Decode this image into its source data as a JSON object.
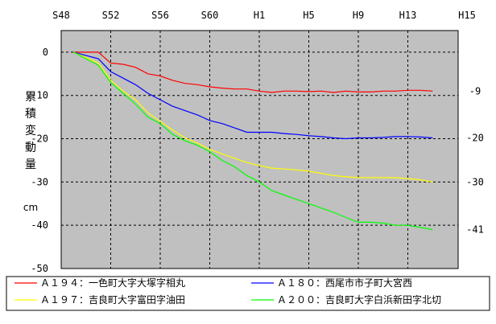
{
  "chart_data": {
    "type": "line",
    "x_categories": [
      "S48",
      "S52",
      "S56",
      "S60",
      "H1",
      "H5",
      "H9",
      "H13",
      "H15"
    ],
    "ylabel_chars": [
      "累",
      "積",
      "変",
      "動",
      "量"
    ],
    "unit": "cm",
    "ylim": [
      -50,
      5
    ],
    "y_ticks": [
      "0",
      "-10",
      "-20",
      "-30",
      "-40",
      "-50"
    ],
    "grid": true,
    "background": "#c0c0c0",
    "series": [
      {
        "name": "Ａ１９４：一色町大字大塚字相丸",
        "color": "#ff0000",
        "end_label": "-9",
        "x": [
          1974,
          1976,
          1977,
          1978,
          1979,
          1980,
          1981,
          1982,
          1983,
          1984,
          1985,
          1986,
          1987,
          1988,
          1989,
          1990,
          1991,
          1992,
          1993,
          1994,
          1995,
          1996,
          1997,
          1998,
          1999,
          2000,
          2001,
          2002,
          2003
        ],
        "y": [
          0,
          0,
          -2.5,
          -2.8,
          -3.5,
          -5,
          -5.5,
          -6.5,
          -7.2,
          -7.5,
          -8,
          -8.3,
          -8.5,
          -8.5,
          -9,
          -9.3,
          -9,
          -9,
          -9.1,
          -9,
          -9.3,
          -9,
          -9.2,
          -9.2,
          -9,
          -9,
          -8.8,
          -8.8,
          -9
        ]
      },
      {
        "name": "Ａ１８０：西尾市市子町大宮西",
        "color": "#0000ff",
        "end_label": "-20",
        "x": [
          1974,
          1976,
          1977,
          1978,
          1979,
          1980,
          1981,
          1982,
          1983,
          1984,
          1985,
          1986,
          1987,
          1988,
          1989,
          1990,
          1991,
          1992,
          1993,
          1994,
          1995,
          1996,
          1997,
          1998,
          1999,
          2000,
          2001,
          2002,
          2003
        ],
        "y": [
          0,
          -1.5,
          -4.5,
          -6,
          -7.5,
          -9.5,
          -11,
          -12.5,
          -13.5,
          -14.5,
          -15.8,
          -16.5,
          -17.5,
          -18.5,
          -18.5,
          -18.5,
          -18.8,
          -19,
          -19.3,
          -19.5,
          -19.8,
          -20,
          -19.8,
          -19.8,
          -19.7,
          -19.5,
          -19.5,
          -19.6,
          -19.8
        ]
      },
      {
        "name": "Ａ１９７：吉良町大字富田字油田",
        "color": "#ffff00",
        "end_label": "-30",
        "x": [
          1974,
          1976,
          1977,
          1978,
          1979,
          1980,
          1981,
          1982,
          1983,
          1984,
          1985,
          1986,
          1987,
          1988,
          1989,
          1990,
          1991,
          1992,
          1993,
          1994,
          1995,
          1996,
          1997,
          1998,
          1999,
          2000,
          2001,
          2002,
          2003
        ],
        "y": [
          0,
          -2.5,
          -6.5,
          -9,
          -11,
          -14,
          -16,
          -18,
          -19.8,
          -21,
          -22.5,
          -23.5,
          -24.5,
          -25.5,
          -26.2,
          -26.8,
          -27,
          -27.2,
          -27.5,
          -28,
          -28.5,
          -28.8,
          -29,
          -29,
          -29,
          -29,
          -29.2,
          -29.5,
          -30
        ]
      },
      {
        "name": "Ａ２００：吉良町大字白浜新田字北切",
        "color": "#00ff00",
        "end_label": "-41",
        "x": [
          1974,
          1976,
          1977,
          1978,
          1979,
          1980,
          1981,
          1982,
          1983,
          1984,
          1985,
          1986,
          1987,
          1988,
          1989,
          1990,
          1991,
          1992,
          1993,
          1994,
          1995,
          1996,
          1997,
          1998,
          1999,
          2000,
          2001,
          2002,
          2003
        ],
        "y": [
          0,
          -3,
          -7,
          -9.5,
          -12,
          -15,
          -16.5,
          -19,
          -20.5,
          -21.5,
          -23,
          -25,
          -26.5,
          -28.5,
          -30,
          -32,
          -33,
          -34,
          -35,
          -36,
          -37,
          -38.2,
          -39.3,
          -39.3,
          -39.5,
          -40,
          -40,
          -40.5,
          -41
        ]
      }
    ]
  }
}
